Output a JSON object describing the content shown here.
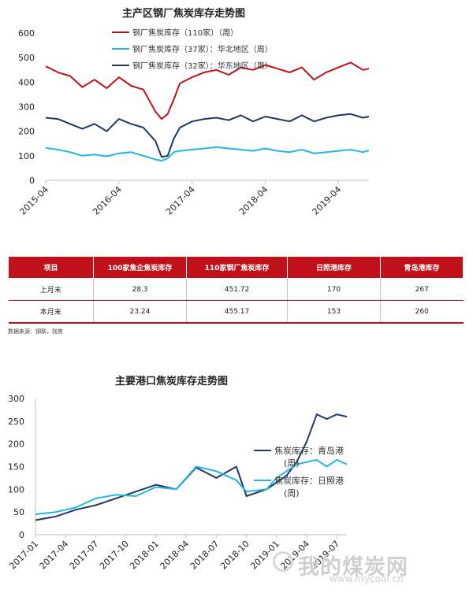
{
  "charts": {
    "top_title": "主产区钢厂焦炭库存走势图",
    "bottom_title": "主要港口焦炭库存走势图"
  },
  "table": {
    "headers": [
      "项目",
      "100家焦企焦炭库存",
      "110家钢厂焦炭库存",
      "日照港库存",
      "青岛港库存"
    ],
    "rows": [
      [
        "上月末",
        "28.3",
        "451.72",
        "170",
        "267"
      ],
      [
        "本月末",
        "23.24",
        "455.17",
        "153",
        "260"
      ]
    ],
    "source": "数据来源：钢联，找焦"
  },
  "watermark": {
    "text": "我的煤炭网",
    "url": "www.mycoal.cn"
  },
  "colors": {
    "red": "#c0101a",
    "navy": "#1f3864",
    "cyan": "#22b5e8",
    "axis": "#bfbfbf"
  },
  "chart_data": [
    {
      "type": "line",
      "title": "主产区钢厂焦炭库存走势图",
      "xlabel": "",
      "ylabel": "",
      "ylim": [
        0,
        600
      ],
      "yticks": [
        0,
        100,
        200,
        300,
        400,
        500,
        600
      ],
      "xlim": [
        "2015-04",
        "2019-09"
      ],
      "xticks": [
        "2015-04",
        "2016-04",
        "2017-04",
        "2018-04",
        "2019-04"
      ],
      "legend_position": "top",
      "x": [
        "2015-04",
        "2015-06",
        "2015-08",
        "2015-10",
        "2015-12",
        "2016-02",
        "2016-04",
        "2016-06",
        "2016-08",
        "2016-10",
        "2016-11",
        "2016-12",
        "2017-01",
        "2017-02",
        "2017-04",
        "2017-06",
        "2017-08",
        "2017-10",
        "2017-12",
        "2018-02",
        "2018-04",
        "2018-06",
        "2018-08",
        "2018-10",
        "2018-12",
        "2019-02",
        "2019-04",
        "2019-06",
        "2019-08",
        "2019-09"
      ],
      "series": [
        {
          "name": "钢厂焦炭库存（110家）（周）",
          "color": "#c0101a",
          "values": [
            465,
            440,
            425,
            380,
            410,
            375,
            420,
            385,
            370,
            280,
            250,
            270,
            330,
            395,
            420,
            440,
            450,
            430,
            460,
            450,
            470,
            455,
            440,
            460,
            410,
            440,
            460,
            480,
            450,
            455
          ]
        },
        {
          "name": "钢厂焦炭库存（37家）：华北地区（周）",
          "color": "#22b5e8",
          "values": [
            132,
            125,
            115,
            100,
            105,
            98,
            110,
            115,
            100,
            85,
            80,
            90,
            115,
            120,
            125,
            130,
            135,
            130,
            125,
            120,
            130,
            120,
            115,
            125,
            110,
            115,
            120,
            125,
            115,
            122
          ]
        },
        {
          "name": "钢厂焦炭库存（32家）：华东地区（周）",
          "color": "#1f3864",
          "values": [
            255,
            250,
            230,
            210,
            230,
            200,
            250,
            230,
            215,
            160,
            95,
            100,
            170,
            215,
            240,
            250,
            255,
            245,
            265,
            240,
            260,
            250,
            240,
            265,
            240,
            255,
            265,
            270,
            255,
            260
          ]
        }
      ]
    },
    {
      "type": "line",
      "title": "主要港口焦炭库存走势图",
      "xlabel": "",
      "ylabel": "",
      "ylim": [
        0,
        300
      ],
      "yticks": [
        0,
        50,
        100,
        150,
        200,
        250,
        300
      ],
      "xlim": [
        "2017-01",
        "2019-08"
      ],
      "xticks": [
        "2017-01",
        "2017-04",
        "2017-07",
        "2017-10",
        "2018-01",
        "2018-04",
        "2018-07",
        "2018-10",
        "2019-01",
        "2019-04",
        "2019-07"
      ],
      "legend_position": "right",
      "x": [
        "2017-01",
        "2017-03",
        "2017-05",
        "2017-07",
        "2017-09",
        "2017-11",
        "2018-01",
        "2018-03",
        "2018-05",
        "2018-07",
        "2018-09",
        "2018-10",
        "2018-12",
        "2019-01",
        "2019-02",
        "2019-03",
        "2019-04",
        "2019-05",
        "2019-06",
        "2019-07",
        "2019-08"
      ],
      "series": [
        {
          "name": "焦炭库存：青岛港（周）",
          "color": "#1f3864",
          "values": [
            32,
            40,
            55,
            65,
            80,
            95,
            110,
            100,
            148,
            125,
            150,
            85,
            100,
            115,
            130,
            160,
            205,
            265,
            255,
            265,
            260
          ]
        },
        {
          "name": "焦炭库存：日照港（周）",
          "color": "#22b5e8",
          "values": [
            45,
            50,
            60,
            80,
            88,
            85,
            105,
            100,
            150,
            140,
            120,
            95,
            100,
            125,
            140,
            155,
            160,
            165,
            150,
            165,
            155
          ]
        }
      ]
    }
  ]
}
